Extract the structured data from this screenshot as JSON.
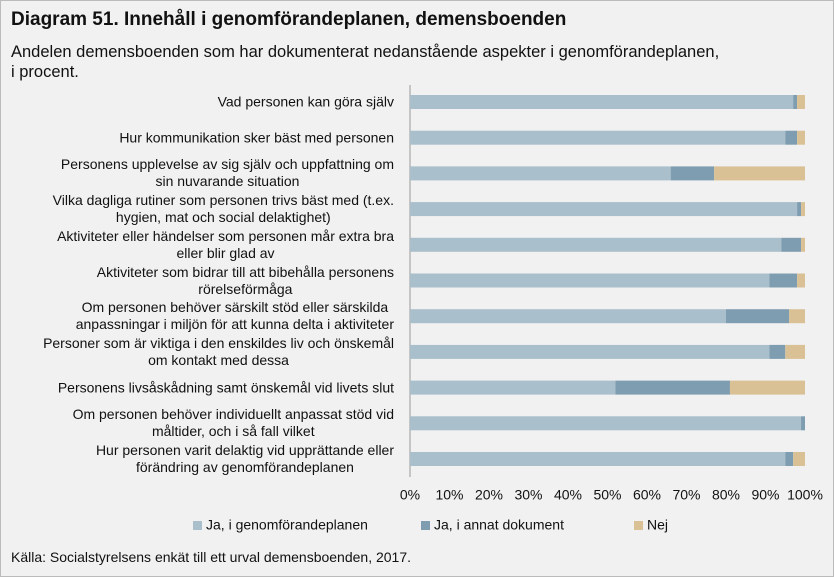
{
  "chart_data": {
    "type": "stacked-bar-horizontal",
    "title": "Diagram 51. Innehåll i genomförandeplanen, demensboenden",
    "subtitle": "Andelen demensboenden som har dokumenterat nedanstående aspekter i genomförandeplanen,\ni procent.",
    "source": "Källa: Socialstyrelsens enkät till ett urval demensboenden, 2017.",
    "categories": [
      "Vad personen kan göra själv",
      "Hur kommunikation sker bäst med personen",
      "Personens upplevelse av sig själv och uppfattning om\nsin nuvarande situation",
      "Vilka dagliga rutiner som personen trivs bäst med (t.ex.\nhygien, mat och social delaktighet)",
      "Aktiviteter eller händelser som personen mår extra bra\neller blir glad av",
      "Aktiviteter som bidrar till att bibehålla personens\nrörelseförmåga",
      "Om personen behöver särskilt stöd eller särskilda\nanpassningar i miljön för att kunna delta i aktiviteter",
      "Personer som är viktiga i den enskildes liv och önskemål\nom kontakt med dessa",
      "Personens livsåskådning samt önskemål vid livets slut",
      "Om personen behöver individuellt anpassat stöd vid\nmåltider, och i så fall vilket",
      "Hur personen varit delaktig vid upprättande eller\nförändring av genomförandeplanen"
    ],
    "series": [
      {
        "name": "Ja, i genomförandeplanen",
        "color": "#a9bfcb",
        "values": [
          97,
          95,
          66,
          98,
          94,
          91,
          80,
          91,
          52,
          99,
          95
        ]
      },
      {
        "name": "Ja, i annat dokument",
        "color": "#7f9db0",
        "values": [
          1,
          3,
          11,
          1,
          5,
          7,
          16,
          4,
          29,
          1,
          2
        ]
      },
      {
        "name": "Nej",
        "color": "#d9c195",
        "values": [
          2,
          2,
          23,
          1,
          1,
          2,
          4,
          5,
          19,
          0,
          3
        ]
      }
    ],
    "xlim": [
      0,
      100
    ],
    "xticks": [
      {
        "value": 0,
        "label": "0%"
      },
      {
        "value": 10,
        "label": "10%"
      },
      {
        "value": 20,
        "label": "20%"
      },
      {
        "value": 30,
        "label": "30%"
      },
      {
        "value": 40,
        "label": "40%"
      },
      {
        "value": 50,
        "label": "50%"
      },
      {
        "value": 60,
        "label": "60%"
      },
      {
        "value": 70,
        "label": "70%"
      },
      {
        "value": 80,
        "label": "80%"
      },
      {
        "value": 90,
        "label": "90%"
      },
      {
        "value": 100,
        "label": "100%"
      }
    ]
  }
}
